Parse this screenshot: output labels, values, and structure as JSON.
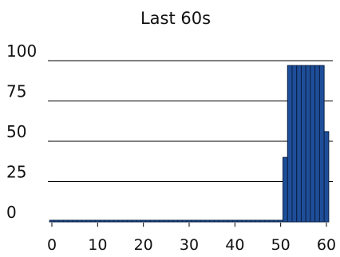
{
  "chart_data": {
    "type": "bar",
    "title": "Last 60s",
    "xlabel": "",
    "ylabel": "",
    "xlim": [
      0,
      61
    ],
    "ylim": [
      0,
      100
    ],
    "x_ticks": [
      0,
      10,
      20,
      30,
      40,
      50,
      60
    ],
    "y_ticks": [
      0,
      25,
      50,
      75,
      100
    ],
    "grid": "horizontal",
    "legend": "none",
    "bar_color": "#1f4e99",
    "bar_edge_color": "#0a1f44",
    "series": [
      {
        "x": [
          0,
          1,
          2,
          3,
          4,
          5,
          6,
          7,
          8,
          9,
          10,
          11,
          12,
          13,
          14,
          15,
          16,
          17,
          18,
          19,
          20,
          21,
          22,
          23,
          24,
          25,
          26,
          27,
          28,
          29,
          30,
          31,
          32,
          33,
          34,
          35,
          36,
          37,
          38,
          39,
          40,
          41,
          42,
          43,
          44,
          45,
          46,
          47,
          48,
          49,
          50,
          51,
          52,
          53,
          54,
          55,
          56,
          57,
          58,
          59,
          60
        ],
        "values": [
          1,
          1,
          1,
          1,
          1,
          1,
          1,
          1,
          1,
          1,
          1,
          1,
          1,
          1,
          1,
          1,
          1,
          1,
          1,
          1,
          1,
          1,
          1,
          1,
          1,
          1,
          1,
          1,
          1,
          1,
          1,
          1,
          1,
          1,
          1,
          1,
          1,
          1,
          1,
          1,
          1,
          1,
          1,
          1,
          1,
          1,
          1,
          1,
          1,
          1,
          1,
          40,
          97,
          97,
          97,
          97,
          97,
          97,
          97,
          97,
          56
        ]
      }
    ]
  }
}
